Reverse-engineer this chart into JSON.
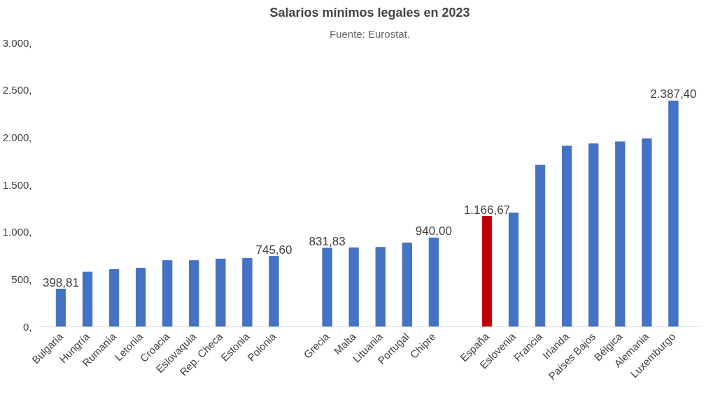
{
  "chart_data": {
    "type": "bar",
    "title": "Salarios mínimos legales en 2023",
    "subtitle": "Fuente: Eurostat.",
    "categories": [
      "Bulgaria",
      "Hungría",
      "Rumanía",
      "Letonia",
      "Croacia",
      "Eslovaquia",
      "Rep. Checa",
      "Estonia",
      "Polonia",
      null,
      "Grecia",
      "Malta",
      "Lituania",
      "Portugal",
      "Chipre",
      null,
      "España",
      "Eslovenia",
      "Francia",
      "Irlanda",
      "Países Bajos",
      "Bélgica",
      "Alemania",
      "Luxemburgo"
    ],
    "values": [
      398.81,
      579,
      606,
      620,
      700,
      700,
      717,
      725,
      745.6,
      null,
      831.83,
      835,
      840,
      887,
      940,
      null,
      1166.67,
      1203,
      1709,
      1910,
      1934,
      1955,
      1987,
      2387.4
    ],
    "value_labels": [
      "398,81",
      null,
      null,
      null,
      null,
      null,
      null,
      null,
      "745,60",
      null,
      "831,83",
      null,
      null,
      null,
      "940,00",
      null,
      "1.166,67",
      null,
      null,
      null,
      null,
      null,
      null,
      "2.387,40"
    ],
    "colors": [
      "#4472c4",
      "#4472c4",
      "#4472c4",
      "#4472c4",
      "#4472c4",
      "#4472c4",
      "#4472c4",
      "#4472c4",
      "#4472c4",
      null,
      "#4472c4",
      "#4472c4",
      "#4472c4",
      "#4472c4",
      "#4472c4",
      null,
      "#c00000",
      "#4472c4",
      "#4472c4",
      "#4472c4",
      "#4472c4",
      "#4472c4",
      "#4472c4",
      "#4472c4"
    ],
    "ylim": [
      0,
      3000
    ],
    "yticks": [
      {
        "value": 0,
        "label": "0,"
      },
      {
        "value": 500,
        "label": "500,"
      },
      {
        "value": 1000,
        "label": "1.000,"
      },
      {
        "value": 1500,
        "label": "1.500,"
      },
      {
        "value": 2000,
        "label": "2.000,"
      },
      {
        "value": 2500,
        "label": "2.500,"
      },
      {
        "value": 3000,
        "label": "3.000,"
      }
    ],
    "grid": false
  }
}
